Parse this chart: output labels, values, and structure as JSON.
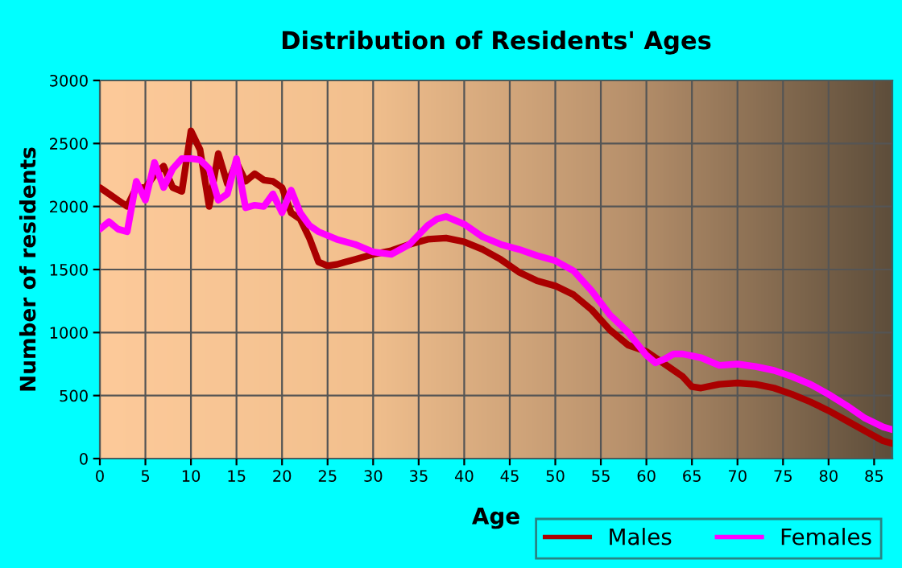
{
  "chart_data": {
    "type": "line",
    "title": "Distribution of Residents' Ages",
    "xlabel": "Age",
    "ylabel": "Number of residents",
    "series": [
      {
        "name": "Males",
        "color": "#aa0000",
        "x": [
          0,
          1,
          2,
          3,
          4,
          5,
          6,
          7,
          8,
          9,
          10,
          11,
          12,
          13,
          14,
          15,
          16,
          17,
          18,
          19,
          20,
          21,
          22,
          23,
          24,
          25,
          26,
          27,
          28,
          29,
          30,
          32,
          34,
          36,
          38,
          40,
          42,
          44,
          46,
          48,
          50,
          52,
          54,
          56,
          58,
          60,
          62,
          64,
          65,
          66,
          68,
          70,
          72,
          74,
          76,
          78,
          80,
          82,
          84,
          86,
          87
        ],
        "values": [
          2150,
          2100,
          2050,
          2000,
          2150,
          2150,
          2250,
          2320,
          2150,
          2120,
          2600,
          2450,
          2000,
          2420,
          2180,
          2350,
          2200,
          2260,
          2210,
          2200,
          2150,
          1950,
          1900,
          1750,
          1560,
          1530,
          1540,
          1560,
          1580,
          1600,
          1620,
          1650,
          1700,
          1740,
          1750,
          1720,
          1660,
          1580,
          1480,
          1410,
          1370,
          1300,
          1180,
          1020,
          900,
          850,
          750,
          650,
          570,
          560,
          590,
          600,
          590,
          560,
          510,
          450,
          380,
          300,
          220,
          140,
          120
        ]
      },
      {
        "name": "Females",
        "color": "#ff00ff",
        "x": [
          0,
          1,
          2,
          3,
          4,
          5,
          6,
          7,
          8,
          9,
          10,
          11,
          12,
          13,
          14,
          15,
          16,
          17,
          18,
          19,
          20,
          21,
          22,
          23,
          24,
          26,
          28,
          30,
          32,
          34,
          36,
          37,
          38,
          40,
          42,
          44,
          46,
          48,
          50,
          52,
          54,
          56,
          58,
          60,
          61,
          62,
          63,
          64,
          66,
          68,
          70,
          72,
          74,
          76,
          78,
          80,
          82,
          84,
          86,
          87
        ],
        "values": [
          1820,
          1880,
          1820,
          1800,
          2200,
          2050,
          2350,
          2150,
          2300,
          2380,
          2380,
          2370,
          2300,
          2050,
          2100,
          2380,
          1990,
          2010,
          2000,
          2100,
          1950,
          2130,
          1950,
          1850,
          1800,
          1740,
          1700,
          1640,
          1620,
          1700,
          1850,
          1900,
          1920,
          1860,
          1760,
          1700,
          1660,
          1610,
          1570,
          1490,
          1330,
          1140,
          1000,
          820,
          760,
          790,
          830,
          830,
          800,
          740,
          750,
          730,
          700,
          650,
          590,
          510,
          420,
          320,
          250,
          230
        ]
      }
    ],
    "xlim": [
      0,
      87
    ],
    "xticks": [
      0,
      5,
      10,
      15,
      20,
      25,
      30,
      35,
      40,
      45,
      50,
      55,
      60,
      65,
      70,
      75,
      80,
      85
    ],
    "ylim": [
      0,
      3000
    ],
    "yticks": [
      0,
      500,
      1000,
      1500,
      2000,
      2500,
      3000
    ],
    "grid": true,
    "legend": "bottom right",
    "marker": "none",
    "line_style": "solid"
  }
}
